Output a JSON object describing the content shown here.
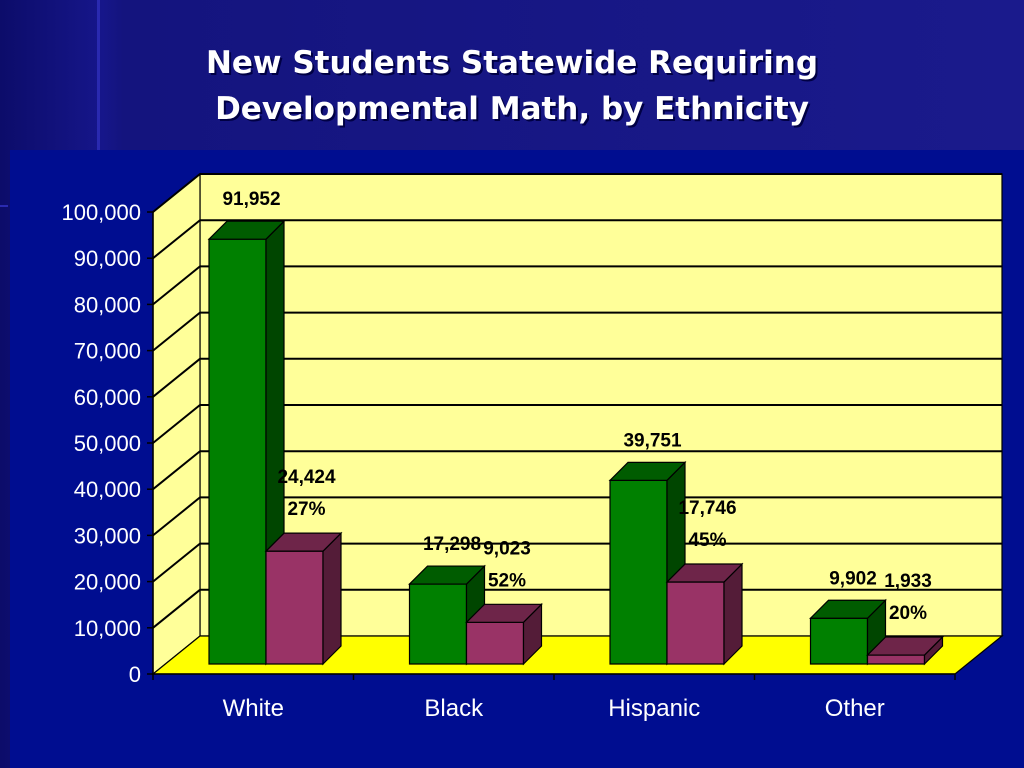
{
  "title_lines": [
    "New Students Statewide Requiring",
    "Developmental Math, by Ethnicity"
  ],
  "colors": {
    "background": "#14147e",
    "plot_back": "#ffff99",
    "plot_floor": "#ffff00",
    "series_total": "#008000",
    "series_dev": "#993366",
    "grid": "#000000"
  },
  "chart_data": {
    "type": "bar",
    "style": "3d-clustered",
    "categories": [
      "White",
      "Black",
      "Hispanic",
      "Other"
    ],
    "series": [
      {
        "values": [
          91952,
          17298,
          39751,
          9902
        ],
        "labels": [
          "91,952",
          "17,298",
          "39,751",
          "9,902"
        ],
        "color": "#008000"
      },
      {
        "values": [
          24424,
          9023,
          17746,
          1933
        ],
        "labels": [
          "24,424",
          "9,023",
          "17,746",
          "1,933"
        ],
        "percent_labels": [
          "27%",
          "52%",
          "45%",
          "20%"
        ],
        "color": "#993366"
      }
    ],
    "ylim": [
      0,
      100000
    ],
    "y_ticks": [
      0,
      10000,
      20000,
      30000,
      40000,
      50000,
      60000,
      70000,
      80000,
      90000,
      100000
    ],
    "y_tick_labels": [
      "0",
      "10,000",
      "20,000",
      "30,000",
      "40,000",
      "50,000",
      "60,000",
      "70,000",
      "80,000",
      "90,000",
      "100,000"
    ],
    "grid": true,
    "legend": "none",
    "xlabel": "",
    "ylabel": ""
  }
}
